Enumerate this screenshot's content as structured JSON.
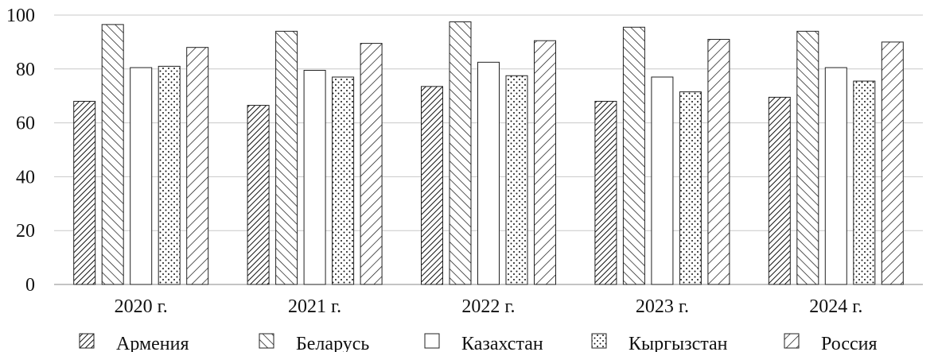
{
  "chart_data": {
    "type": "bar",
    "categories": [
      "2020 г.",
      "2021 г.",
      "2022 г.",
      "2023 г.",
      "2024 г."
    ],
    "series": [
      {
        "name": "Армения",
        "pattern": "hatch-fwd-dense",
        "values": [
          68,
          66.5,
          73.5,
          68,
          69.5
        ]
      },
      {
        "name": "Беларусь",
        "pattern": "hatch-back",
        "values": [
          96.5,
          94,
          97.5,
          95.5,
          94
        ]
      },
      {
        "name": "Казахстан",
        "pattern": "plain",
        "values": [
          80.5,
          79.5,
          82.5,
          77,
          80.5
        ]
      },
      {
        "name": "Кыргызстан",
        "pattern": "dots",
        "values": [
          81,
          77,
          77.5,
          71.5,
          75.5
        ]
      },
      {
        "name": "Россия",
        "pattern": "hatch-fwd",
        "values": [
          88,
          89.5,
          90.5,
          91,
          90
        ]
      }
    ],
    "yticks": [
      "0",
      "20",
      "40",
      "60",
      "80",
      "100"
    ],
    "ylim": [
      0,
      100
    ],
    "grid": true,
    "legend": "bottom",
    "title": "",
    "xlabel": "",
    "ylabel": ""
  }
}
